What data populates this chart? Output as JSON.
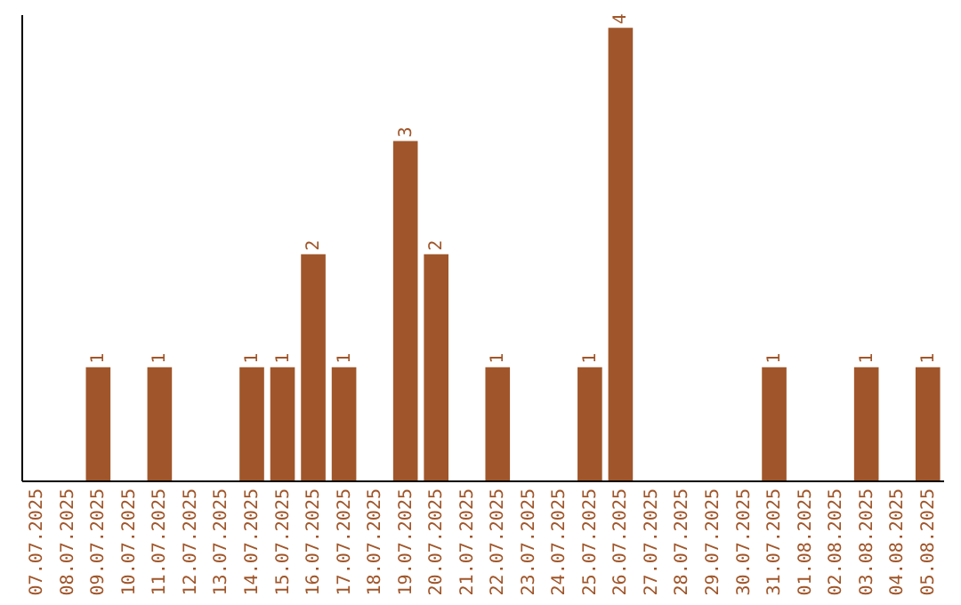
{
  "chart_data": {
    "type": "bar",
    "categories": [
      "07.07.2025",
      "08.07.2025",
      "09.07.2025",
      "10.07.2025",
      "11.07.2025",
      "12.07.2025",
      "13.07.2025",
      "14.07.2025",
      "15.07.2025",
      "16.07.2025",
      "17.07.2025",
      "18.07.2025",
      "19.07.2025",
      "20.07.2025",
      "21.07.2025",
      "22.07.2025",
      "23.07.2025",
      "24.07.2025",
      "25.07.2025",
      "26.07.2025",
      "27.07.2025",
      "28.07.2025",
      "29.07.2025",
      "30.07.2025",
      "31.07.2025",
      "01.08.2025",
      "02.08.2025",
      "03.08.2025",
      "04.08.2025",
      "05.08.2025"
    ],
    "values": [
      0,
      0,
      1,
      0,
      1,
      0,
      0,
      1,
      1,
      2,
      1,
      0,
      3,
      2,
      0,
      1,
      0,
      0,
      1,
      4,
      0,
      0,
      0,
      0,
      1,
      0,
      0,
      1,
      0,
      1
    ],
    "value_labels": [
      null,
      null,
      "1",
      null,
      "1",
      null,
      null,
      "1",
      "1",
      "2",
      "1",
      null,
      "3",
      "2",
      null,
      "1",
      null,
      null,
      "1",
      "4",
      null,
      null,
      null,
      null,
      "1",
      null,
      null,
      "1",
      null,
      "1"
    ],
    "color": "#a0562a",
    "tick_labels": "x"
  }
}
